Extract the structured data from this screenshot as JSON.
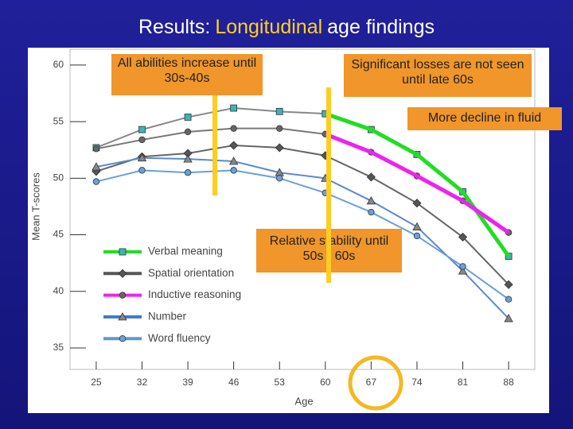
{
  "title_parts": [
    "Results:",
    "Longitudinal",
    "age findings"
  ],
  "chart_data": {
    "type": "line",
    "xlabel": "Age",
    "ylabel": "Mean T-scores",
    "x": [
      25,
      32,
      39,
      46,
      53,
      60,
      67,
      74,
      81,
      88
    ],
    "xlim": [
      21,
      92
    ],
    "xticks": [
      25,
      32,
      39,
      46,
      53,
      60,
      67,
      74,
      81,
      88
    ],
    "ylim": [
      33.1,
      61.4
    ],
    "yticks": [
      35,
      40,
      45,
      50,
      55,
      60
    ],
    "series": [
      {
        "name": "Verbal meaning",
        "color": "#22dd22",
        "line_color": "#888888",
        "marker": "square",
        "marker_color": "#3cb4b4",
        "highlight_from": 60,
        "values": [
          52.7,
          54.3,
          55.4,
          56.2,
          55.9,
          55.7,
          54.3,
          52.1,
          48.8,
          43.1
        ]
      },
      {
        "name": "Spatial orientation",
        "color": "#555555",
        "line_color": "#666666",
        "marker": "diamond",
        "marker_color": "#555555",
        "values": [
          50.6,
          51.9,
          52.2,
          52.9,
          52.7,
          52.0,
          50.1,
          47.8,
          44.8,
          40.6
        ]
      },
      {
        "name": "Inductive reasoning",
        "color": "#ee22ee",
        "line_color": "#777777",
        "marker": "circle",
        "marker_color": "#666666",
        "highlight_from": 60,
        "values": [
          52.6,
          53.4,
          54.1,
          54.4,
          54.4,
          53.9,
          52.3,
          50.2,
          48.0,
          45.2
        ]
      },
      {
        "name": "Number",
        "color": "#3a7ad0",
        "line_color": "#5a8ad0",
        "marker": "triangle",
        "marker_color": "#888888",
        "values": [
          51.0,
          51.8,
          51.7,
          51.5,
          50.5,
          50.0,
          48.0,
          45.7,
          41.8,
          37.6
        ]
      },
      {
        "name": "Word fluency",
        "color": "#5a9ad8",
        "line_color": "#6aa0d8",
        "marker": "circle",
        "marker_color": "#6aa0d8",
        "values": [
          49.7,
          50.7,
          50.5,
          50.7,
          50.0,
          48.7,
          47.0,
          44.9,
          42.2,
          39.3
        ]
      }
    ],
    "annotations": [
      "All abilities increase until 30s-40s",
      "Significant losses are not seen until late 60s",
      "More decline in fluid",
      "Relative stability until 50s - 60s"
    ]
  }
}
